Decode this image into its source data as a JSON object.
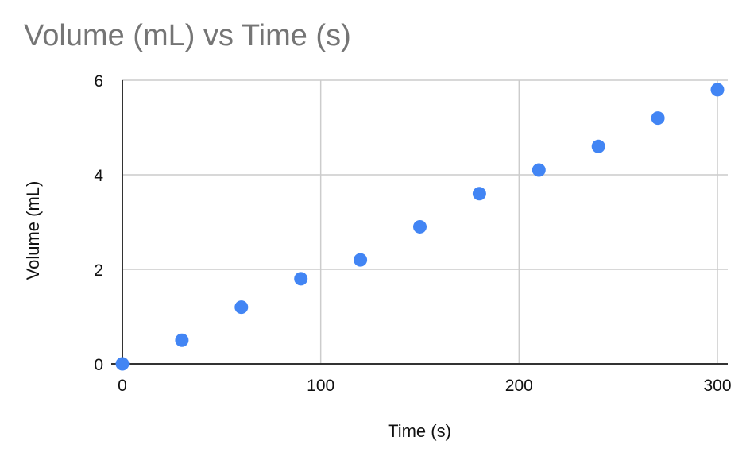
{
  "chart_data": {
    "type": "scatter",
    "title": "Volume (mL) vs Time (s)",
    "xlabel": "Time (s)",
    "ylabel": "Volume (mL)",
    "xlim": [
      0,
      300
    ],
    "ylim": [
      0,
      6
    ],
    "x_ticks": [
      0,
      100,
      200,
      300
    ],
    "y_ticks": [
      0,
      2,
      4,
      6
    ],
    "grid": true,
    "legend": "none",
    "series": [
      {
        "color": "#4285f4",
        "points": [
          {
            "x": 0,
            "y": 0
          },
          {
            "x": 30,
            "y": 0.5
          },
          {
            "x": 60,
            "y": 1.2
          },
          {
            "x": 90,
            "y": 1.8
          },
          {
            "x": 120,
            "y": 2.2
          },
          {
            "x": 150,
            "y": 2.9
          },
          {
            "x": 180,
            "y": 3.6
          },
          {
            "x": 210,
            "y": 4.1
          },
          {
            "x": 240,
            "y": 4.6
          },
          {
            "x": 270,
            "y": 5.2
          },
          {
            "x": 300,
            "y": 5.8
          }
        ]
      }
    ]
  }
}
